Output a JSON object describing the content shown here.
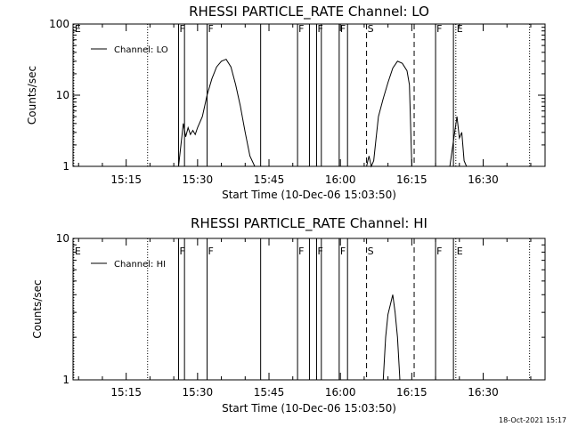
{
  "chart_data": [
    {
      "type": "line",
      "title": "RHESSI PARTICLE_RATE Channel: LO",
      "xlabel": "Start Time (10-Dec-06 15:03:50)",
      "ylabel": "Counts/sec",
      "yscale": "log",
      "ylim": [
        1,
        100
      ],
      "yticks": [
        "1",
        "10",
        "100"
      ],
      "xlim": [
        "15:03:50",
        "16:43:00"
      ],
      "xticks": [
        "15:15",
        "15:30",
        "15:45",
        "16:00",
        "16:15",
        "16:30"
      ],
      "grid": false,
      "legend_position": "top-left",
      "series": [
        {
          "name": "Channel: LO",
          "x": [
            "15:26:00",
            "15:27:00",
            "15:27:30",
            "15:28:00",
            "15:28:30",
            "15:29:00",
            "15:29:30",
            "15:30:00",
            "15:31:00",
            "15:32:00",
            "15:33:00",
            "15:34:00",
            "15:35:00",
            "15:36:00",
            "15:37:00",
            "15:38:00",
            "15:39:00",
            "15:40:00",
            "15:41:00",
            "15:42:00",
            "15:42:30",
            "16:05:30",
            "16:06:00",
            "16:06:30",
            "16:07:00",
            "16:07:30",
            "16:08:00",
            "16:09:00",
            "16:10:00",
            "16:11:00",
            "16:12:00",
            "16:13:00",
            "16:14:00",
            "16:14:30",
            "16:15:00",
            "16:23:00",
            "16:24:00",
            "16:24:30",
            "16:25:00",
            "16:25:30",
            "16:26:00",
            "16:26:30"
          ],
          "values": [
            1,
            4,
            2.6,
            3.5,
            2.8,
            3.2,
            2.8,
            3.5,
            5,
            10,
            17,
            25,
            30,
            32,
            25,
            14,
            7,
            3,
            1.4,
            1,
            1,
            1,
            1.4,
            1,
            1.2,
            2.5,
            5,
            9,
            15,
            24,
            30,
            28,
            22,
            14,
            1,
            1,
            3,
            5,
            2.5,
            3,
            1.2,
            1
          ]
        }
      ],
      "markers": [
        {
          "time": "15:04:00",
          "label": "E",
          "style": "dotted"
        },
        {
          "time": "15:19:30",
          "label": "",
          "style": "dotted"
        },
        {
          "time": "15:26:00",
          "label": "F",
          "style": "solid"
        },
        {
          "time": "15:27:15",
          "label": "",
          "style": "solid"
        },
        {
          "time": "15:32:00",
          "label": "F",
          "style": "solid"
        },
        {
          "time": "15:43:15",
          "label": "",
          "style": "solid"
        },
        {
          "time": "15:51:00",
          "label": "F",
          "style": "solid"
        },
        {
          "time": "15:53:30",
          "label": "",
          "style": "solid"
        },
        {
          "time": "15:55:00",
          "label": "F",
          "style": "solid"
        },
        {
          "time": "15:56:00",
          "label": "",
          "style": "solid"
        },
        {
          "time": "15:59:45",
          "label": "F",
          "style": "solid"
        },
        {
          "time": "16:01:30",
          "label": "",
          "style": "solid"
        },
        {
          "time": "16:05:30",
          "label": "S",
          "style": "dashed"
        },
        {
          "time": "16:15:30",
          "label": "",
          "style": "dashed"
        },
        {
          "time": "16:20:00",
          "label": "F",
          "style": "solid"
        },
        {
          "time": "16:23:45",
          "label": "",
          "style": "solid"
        },
        {
          "time": "16:24:15",
          "label": "E",
          "style": "dotted"
        },
        {
          "time": "16:39:45",
          "label": "",
          "style": "dotted"
        }
      ]
    },
    {
      "type": "line",
      "title": "RHESSI PARTICLE_RATE Channel: HI",
      "xlabel": "Start Time (10-Dec-06 15:03:50)",
      "ylabel": "Counts/sec",
      "yscale": "log",
      "ylim": [
        1,
        10
      ],
      "yticks": [
        "1",
        "10"
      ],
      "xlim": [
        "15:03:50",
        "16:43:00"
      ],
      "xticks": [
        "15:15",
        "15:30",
        "15:45",
        "16:00",
        "16:15",
        "16:30"
      ],
      "grid": false,
      "legend_position": "top-left",
      "series": [
        {
          "name": "Channel: HI",
          "x": [
            "16:09:00",
            "16:09:30",
            "16:10:00",
            "16:10:30",
            "16:11:00",
            "16:11:30",
            "16:12:00",
            "16:12:30"
          ],
          "values": [
            1,
            2,
            2.9,
            3.4,
            4,
            3,
            2,
            1
          ]
        }
      ],
      "markers": [
        {
          "time": "15:04:00",
          "label": "E",
          "style": "dotted"
        },
        {
          "time": "15:19:30",
          "label": "",
          "style": "dotted"
        },
        {
          "time": "15:26:00",
          "label": "F",
          "style": "solid"
        },
        {
          "time": "15:27:15",
          "label": "",
          "style": "solid"
        },
        {
          "time": "15:32:00",
          "label": "F",
          "style": "solid"
        },
        {
          "time": "15:43:15",
          "label": "",
          "style": "solid"
        },
        {
          "time": "15:51:00",
          "label": "F",
          "style": "solid"
        },
        {
          "time": "15:53:30",
          "label": "",
          "style": "solid"
        },
        {
          "time": "15:55:00",
          "label": "F",
          "style": "solid"
        },
        {
          "time": "15:56:00",
          "label": "",
          "style": "solid"
        },
        {
          "time": "15:59:45",
          "label": "F",
          "style": "solid"
        },
        {
          "time": "16:01:30",
          "label": "",
          "style": "solid"
        },
        {
          "time": "16:05:30",
          "label": "S",
          "style": "dashed"
        },
        {
          "time": "16:15:30",
          "label": "",
          "style": "dashed"
        },
        {
          "time": "16:20:00",
          "label": "F",
          "style": "solid"
        },
        {
          "time": "16:23:45",
          "label": "",
          "style": "solid"
        },
        {
          "time": "16:24:15",
          "label": "E",
          "style": "dotted"
        },
        {
          "time": "16:39:45",
          "label": "",
          "style": "dotted"
        }
      ]
    }
  ],
  "footer": {
    "timestamp": "18-Oct-2021 15:17"
  }
}
